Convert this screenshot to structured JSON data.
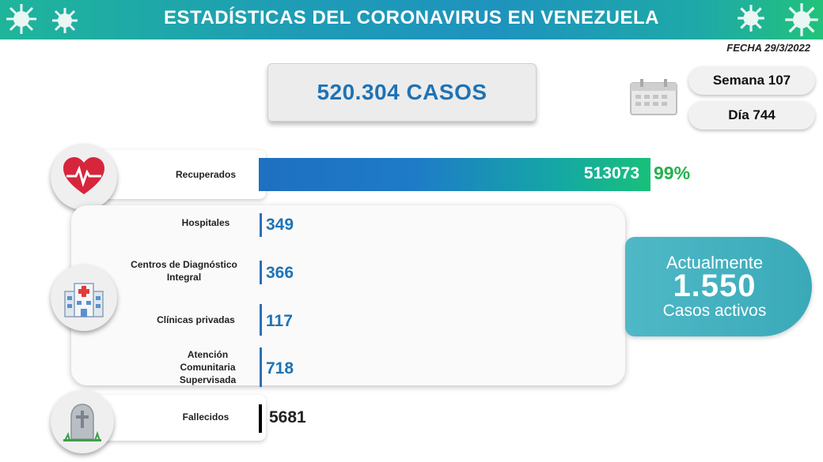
{
  "header": {
    "title": "ESTADÍSTICAS DEL CORONAVIRUS EN VENEZUELA"
  },
  "fecha": "FECHA 29/3/2022",
  "casos_total": "520.304 CASOS",
  "semana": "Semana 107",
  "dia": "Día 744",
  "recuperados": {
    "label": "Recuperados",
    "value": "513073",
    "percent": "99%"
  },
  "hospitalizacion": [
    {
      "label": "Hospitales",
      "value": "349"
    },
    {
      "label": "Centros de Diagnóstico Integral",
      "value": "366"
    },
    {
      "label": "Clínicas privadas",
      "value": "117"
    },
    {
      "label": "Atención Comunitaria Supervisada",
      "value": "718"
    }
  ],
  "activos": {
    "line1": "Actualmente",
    "value": "1.550",
    "line3": "Casos activos"
  },
  "fallecidos": {
    "label": "Fallecidos",
    "value": "5681"
  },
  "icons": {
    "recuperados": "heart-pulse-icon",
    "hospitalizacion": "hospital-icon",
    "fallecidos": "tombstone-icon",
    "fecha": "calendar-icon"
  },
  "colors": {
    "banner": "#1e9db5",
    "accent_blue": "#1e73b6",
    "percent_green": "#22b14c",
    "active_card": "#45b2c0"
  }
}
